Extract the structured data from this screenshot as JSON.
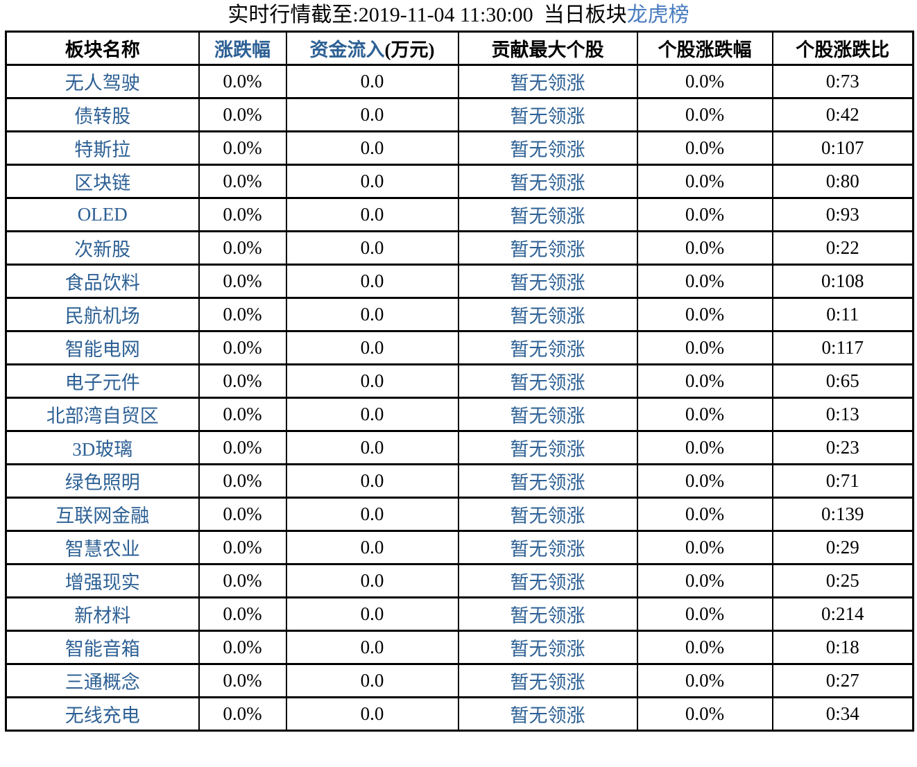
{
  "colors": {
    "background": "#ffffff",
    "text_black": "#000000",
    "table_link_blue": "#2d6094",
    "title_link_blue": "#4a7cc0",
    "border_black": "#000000"
  },
  "title": {
    "text": "实时行情截至:2019-11-04 11:30:00  当日板块",
    "link_label": "龙虎榜"
  },
  "header": {
    "sector_name": "板块名称",
    "change": "涨跌幅",
    "inflow_main": "资金流入",
    "inflow_unit": "(万元)",
    "top_stock": "贡献最大个股",
    "stock_change": "个股涨跌幅",
    "ratio": "个股涨跌比"
  },
  "chart_data": {
    "type": "table",
    "title": "实时行情截至:2019-11-04 11:30:00 当日板块龙虎榜",
    "columns": [
      "板块名称",
      "涨跌幅",
      "资金流入(万元)",
      "贡献最大个股",
      "个股涨跌幅",
      "个股涨跌比"
    ],
    "rows": [
      [
        "无人驾驶",
        "0.0%",
        "0.0",
        "暂无领涨",
        "0.0%",
        "0:73"
      ],
      [
        "债转股",
        "0.0%",
        "0.0",
        "暂无领涨",
        "0.0%",
        "0:42"
      ],
      [
        "特斯拉",
        "0.0%",
        "0.0",
        "暂无领涨",
        "0.0%",
        "0:107"
      ],
      [
        "区块链",
        "0.0%",
        "0.0",
        "暂无领涨",
        "0.0%",
        "0:80"
      ],
      [
        "OLED",
        "0.0%",
        "0.0",
        "暂无领涨",
        "0.0%",
        "0:93"
      ],
      [
        "次新股",
        "0.0%",
        "0.0",
        "暂无领涨",
        "0.0%",
        "0:22"
      ],
      [
        "食品饮料",
        "0.0%",
        "0.0",
        "暂无领涨",
        "0.0%",
        "0:108"
      ],
      [
        "民航机场",
        "0.0%",
        "0.0",
        "暂无领涨",
        "0.0%",
        "0:11"
      ],
      [
        "智能电网",
        "0.0%",
        "0.0",
        "暂无领涨",
        "0.0%",
        "0:117"
      ],
      [
        "电子元件",
        "0.0%",
        "0.0",
        "暂无领涨",
        "0.0%",
        "0:65"
      ],
      [
        "北部湾自贸区",
        "0.0%",
        "0.0",
        "暂无领涨",
        "0.0%",
        "0:13"
      ],
      [
        "3D玻璃",
        "0.0%",
        "0.0",
        "暂无领涨",
        "0.0%",
        "0:23"
      ],
      [
        "绿色照明",
        "0.0%",
        "0.0",
        "暂无领涨",
        "0.0%",
        "0:71"
      ],
      [
        "互联网金融",
        "0.0%",
        "0.0",
        "暂无领涨",
        "0.0%",
        "0:139"
      ],
      [
        "智慧农业",
        "0.0%",
        "0.0",
        "暂无领涨",
        "0.0%",
        "0:29"
      ],
      [
        "增强现实",
        "0.0%",
        "0.0",
        "暂无领涨",
        "0.0%",
        "0:25"
      ],
      [
        "新材料",
        "0.0%",
        "0.0",
        "暂无领涨",
        "0.0%",
        "0:214"
      ],
      [
        "智能音箱",
        "0.0%",
        "0.0",
        "暂无领涨",
        "0.0%",
        "0:18"
      ],
      [
        "三通概念",
        "0.0%",
        "0.0",
        "暂无领涨",
        "0.0%",
        "0:27"
      ],
      [
        "无线充电",
        "0.0%",
        "0.0",
        "暂无领涨",
        "0.0%",
        "0:34"
      ]
    ]
  }
}
